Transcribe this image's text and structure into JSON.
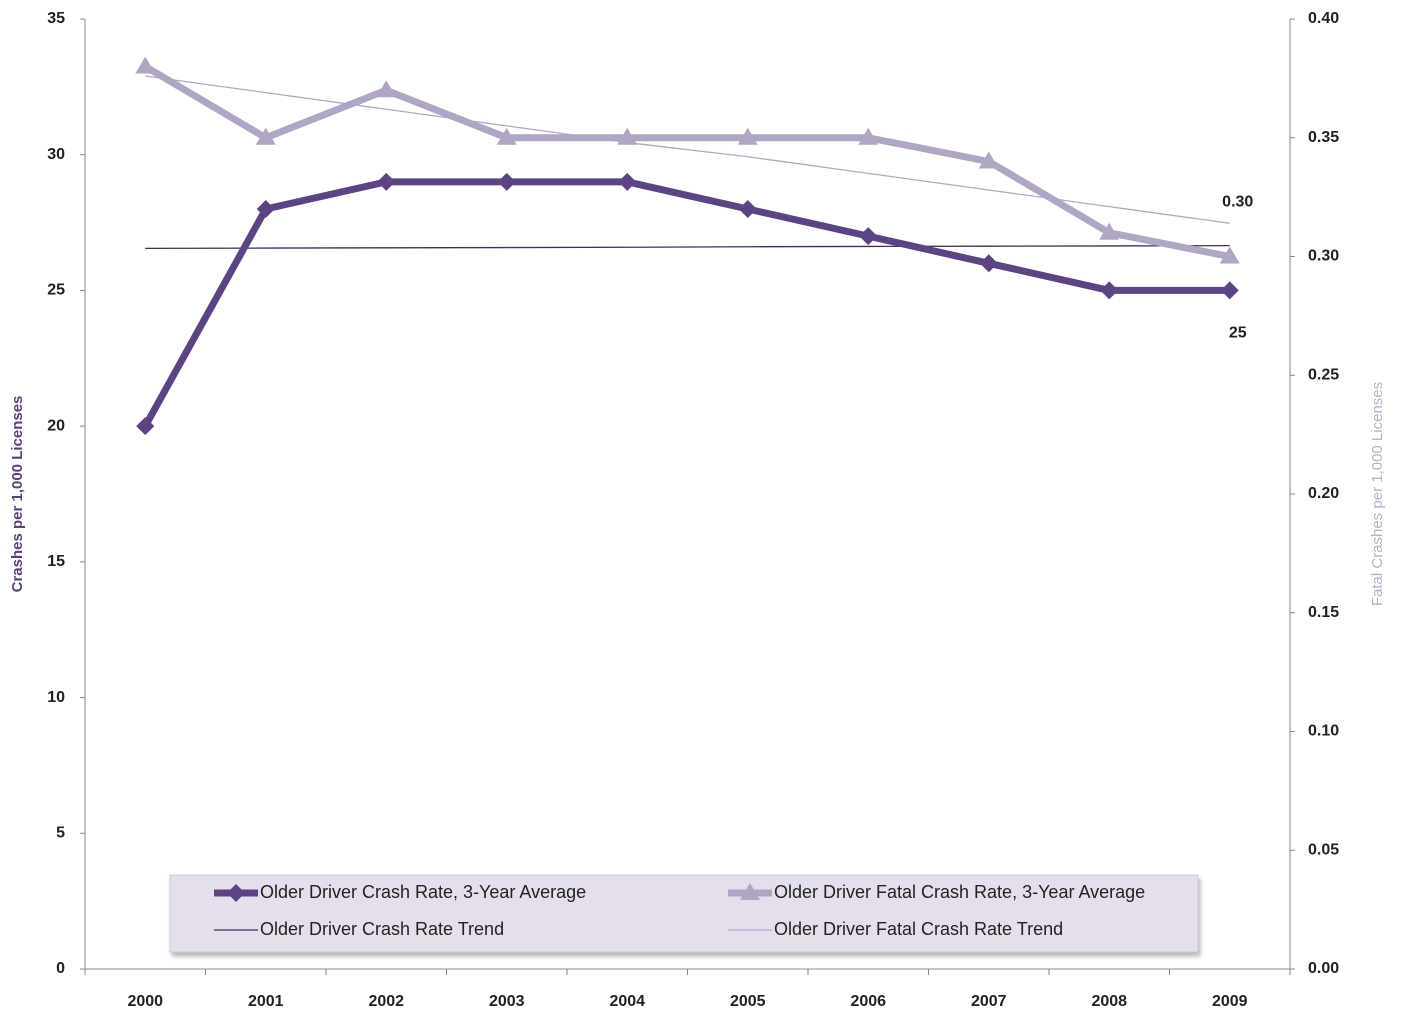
{
  "chart_data": {
    "type": "line",
    "categories": [
      "2000",
      "2001",
      "2002",
      "2003",
      "2004",
      "2005",
      "2006",
      "2007",
      "2008",
      "2009"
    ],
    "series": [
      {
        "name": "Older Driver Crash Rate, 3-Year Average",
        "color": "#5c4484",
        "marker": "diamond",
        "values": [
          20,
          28,
          29,
          29,
          29,
          28,
          27,
          26,
          25,
          25
        ],
        "value_labels": [
          null,
          null,
          null,
          null,
          null,
          null,
          null,
          null,
          null,
          "25"
        ]
      },
      {
        "name": "Older Driver Fatal Crash Rate, 3-Year Average",
        "color": "#b0a6c4",
        "marker": "triangle",
        "axis": "y2",
        "values": [
          0.38,
          0.35,
          0.37,
          0.35,
          0.35,
          0.35,
          0.35,
          0.34,
          0.31,
          0.3
        ],
        "value_labels": [
          null,
          null,
          null,
          null,
          null,
          null,
          null,
          null,
          null,
          "0.30"
        ]
      },
      {
        "name": "Older Driver Crash Rate Trend",
        "color": "#3e2f5e",
        "values": [
          26.55,
          26.56,
          26.57,
          26.58,
          26.59,
          26.61,
          26.62,
          26.63,
          26.64,
          26.65
        ]
      },
      {
        "name": "Older Driver Fatal Crash Rate Trend",
        "color": "#b3a4cc",
        "axis": "y2",
        "values": [
          0.376,
          0.369,
          0.362,
          0.355,
          0.348,
          0.342,
          0.335,
          0.328,
          0.321,
          0.314
        ]
      }
    ],
    "ylabel": "Crashes per 1,000 Licenses",
    "y2label": "Fatal Crashes  per 1,000 Licenses",
    "ylim": [
      0,
      35
    ],
    "yticks": [
      0,
      5,
      10,
      15,
      20,
      25,
      30,
      35
    ],
    "y2lim": [
      0,
      0.4
    ],
    "y2ticks": [
      {
        "value": 0,
        "label": "0.00"
      },
      0.05,
      {
        "value": 0.1,
        "label": "0.10"
      },
      0.15,
      {
        "value": 0.2,
        "label": "0.20"
      },
      0.25,
      {
        "value": 0.3,
        "label": "0.30"
      },
      0.35,
      {
        "value": 0.4,
        "label": "0.40"
      }
    ],
    "legend": "bottom"
  }
}
